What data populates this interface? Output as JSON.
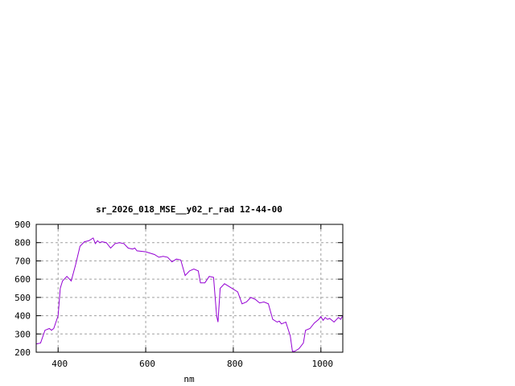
{
  "chart_data": {
    "type": "line",
    "title": "sr_2026_018_MSE__y02_r_rad 12-44-00",
    "xlabel": "nm",
    "ylabel": "",
    "xlim": [
      350,
      1050
    ],
    "ylim": [
      200,
      900
    ],
    "xticks": [
      400,
      600,
      800,
      1000
    ],
    "yticks": [
      200,
      300,
      400,
      500,
      600,
      700,
      800,
      900
    ],
    "grid": true,
    "line_color": "#9400d3",
    "x": [
      350,
      360,
      370,
      380,
      385,
      390,
      400,
      405,
      410,
      420,
      430,
      440,
      450,
      460,
      470,
      480,
      485,
      490,
      495,
      500,
      510,
      520,
      530,
      540,
      550,
      560,
      570,
      575,
      580,
      600,
      620,
      630,
      640,
      650,
      660,
      670,
      680,
      690,
      700,
      710,
      720,
      725,
      735,
      745,
      755,
      762,
      765,
      770,
      780,
      790,
      800,
      810,
      820,
      830,
      840,
      850,
      860,
      870,
      880,
      890,
      900,
      905,
      910,
      920,
      930,
      935,
      940,
      950,
      960,
      965,
      975,
      985,
      995,
      1000,
      1005,
      1010,
      1015,
      1020,
      1030,
      1040,
      1045,
      1050
    ],
    "y": [
      245,
      250,
      320,
      330,
      320,
      330,
      400,
      550,
      590,
      615,
      590,
      680,
      780,
      805,
      810,
      825,
      795,
      810,
      800,
      805,
      800,
      770,
      795,
      800,
      795,
      770,
      765,
      770,
      755,
      750,
      735,
      720,
      725,
      720,
      695,
      710,
      705,
      620,
      645,
      655,
      645,
      580,
      580,
      615,
      610,
      400,
      365,
      550,
      575,
      560,
      545,
      530,
      465,
      475,
      500,
      490,
      470,
      475,
      465,
      380,
      365,
      370,
      355,
      365,
      290,
      205,
      205,
      220,
      250,
      320,
      330,
      360,
      380,
      395,
      375,
      390,
      380,
      385,
      365,
      390,
      380,
      400
    ]
  }
}
